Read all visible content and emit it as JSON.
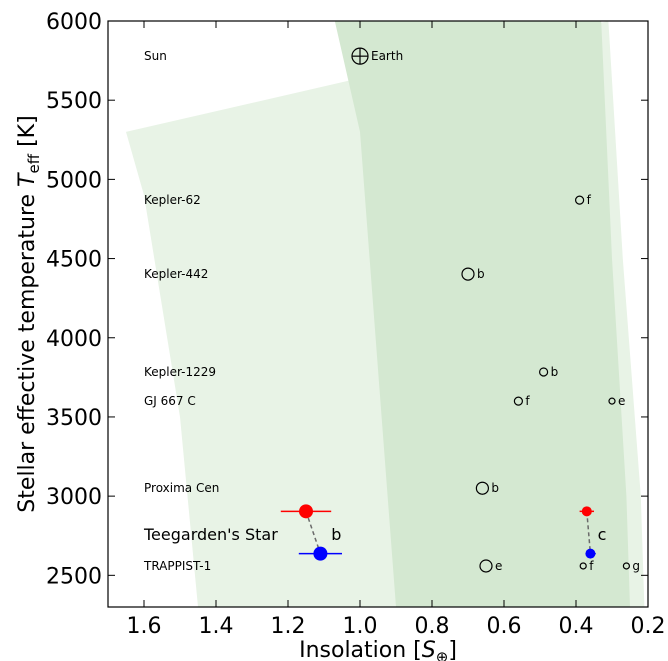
{
  "chart_data": {
    "type": "scatter",
    "xlabel": "Insolation [S⊕]",
    "ylabel": "Stellar effective temperature T_eff [K]",
    "ylabel_prefix": "Stellar effective temperature ",
    "ylabel_symbol": "T",
    "ylabel_subscript": "eff",
    "ylabel_unit": " [K]",
    "xlabel_prefix": "Insolation [",
    "xlabel_symbol": "S",
    "xlabel_subscript": "⊕",
    "xlabel_suffix": "]",
    "xlim": [
      1.7,
      0.2
    ],
    "ylim": [
      2300,
      6000
    ],
    "xticks": [
      1.6,
      1.4,
      1.2,
      1.0,
      0.8,
      0.6,
      0.4,
      0.2
    ],
    "xtick_labels": [
      "1.6",
      "1.4",
      "1.2",
      "1.0",
      "0.8",
      "0.6",
      "0.4",
      "0.2"
    ],
    "yticks": [
      2500,
      3000,
      3500,
      4000,
      4500,
      5000,
      5500,
      6000
    ],
    "ytick_labels": [
      "2500",
      "3000",
      "3500",
      "4000",
      "4500",
      "5000",
      "5500",
      "6000"
    ],
    "grid": false,
    "habitable_zones": {
      "optimistic_color": "#e8f3e6",
      "conservative_color": "#d4e8d1",
      "optimistic_inner": [
        [
          1.65,
          5300
        ],
        [
          1.6,
          4900
        ],
        [
          1.5,
          3500
        ],
        [
          1.45,
          2300
        ]
      ],
      "conservative_inner": [
        [
          1.07,
          6000
        ],
        [
          1.0,
          5300
        ],
        [
          0.95,
          3800
        ],
        [
          0.9,
          2300
        ]
      ],
      "conservative_outer": [
        [
          0.33,
          6000
        ],
        [
          0.3,
          4500
        ],
        [
          0.26,
          3000
        ],
        [
          0.25,
          2300
        ]
      ],
      "optimistic_outer": [
        [
          0.31,
          6000
        ],
        [
          0.27,
          4500
        ],
        [
          0.22,
          3000
        ],
        [
          0.21,
          2300
        ]
      ]
    },
    "stars": [
      {
        "name": "Sun",
        "teff": 5778
      },
      {
        "name": "Kepler-62",
        "teff": 4869
      },
      {
        "name": "Kepler-442",
        "teff": 4402
      },
      {
        "name": "Kepler-1229",
        "teff": 3784
      },
      {
        "name": "GJ 667 C",
        "teff": 3600
      },
      {
        "name": "Proxima Cen",
        "teff": 3050
      },
      {
        "name": "TRAPPIST-1",
        "teff": 2559
      }
    ],
    "planets": [
      {
        "label": "Earth",
        "x": 1.0,
        "y": 5778,
        "size": "large",
        "earth": true
      },
      {
        "label": "f",
        "x": 0.39,
        "y": 4869,
        "size": "small"
      },
      {
        "label": "b",
        "x": 0.7,
        "y": 4402,
        "size": "medium"
      },
      {
        "label": "b",
        "x": 0.49,
        "y": 3784,
        "size": "small"
      },
      {
        "label": "f",
        "x": 0.56,
        "y": 3600,
        "size": "small"
      },
      {
        "label": "e",
        "x": 0.3,
        "y": 3600,
        "size": "tiny"
      },
      {
        "label": "b",
        "x": 0.66,
        "y": 3050,
        "size": "medium"
      },
      {
        "label": "e",
        "x": 0.65,
        "y": 2559,
        "size": "medium"
      },
      {
        "label": "f",
        "x": 0.38,
        "y": 2559,
        "size": "tiny"
      },
      {
        "label": "g",
        "x": 0.26,
        "y": 2559,
        "size": "tiny"
      }
    ],
    "teegarden": {
      "label": "Teegarden's Star",
      "planets": [
        {
          "label": "b",
          "red": {
            "x": 1.15,
            "y": 2904,
            "xerr": [
              1.08,
              1.22
            ],
            "color": "#ff0000"
          },
          "blue": {
            "x": 1.11,
            "y": 2637,
            "xerr": [
              1.05,
              1.17
            ],
            "color": "#0000ff"
          },
          "label_x": 1.08,
          "label_y": 2760
        },
        {
          "label": "c",
          "red": {
            "x": 0.37,
            "y": 2904,
            "xerr": [
              0.35,
              0.39
            ],
            "color": "#ff0000"
          },
          "blue": {
            "x": 0.36,
            "y": 2637,
            "xerr": [
              0.345,
              0.37
            ],
            "color": "#0000ff"
          },
          "label_x": 0.34,
          "label_y": 2760
        }
      ]
    }
  }
}
